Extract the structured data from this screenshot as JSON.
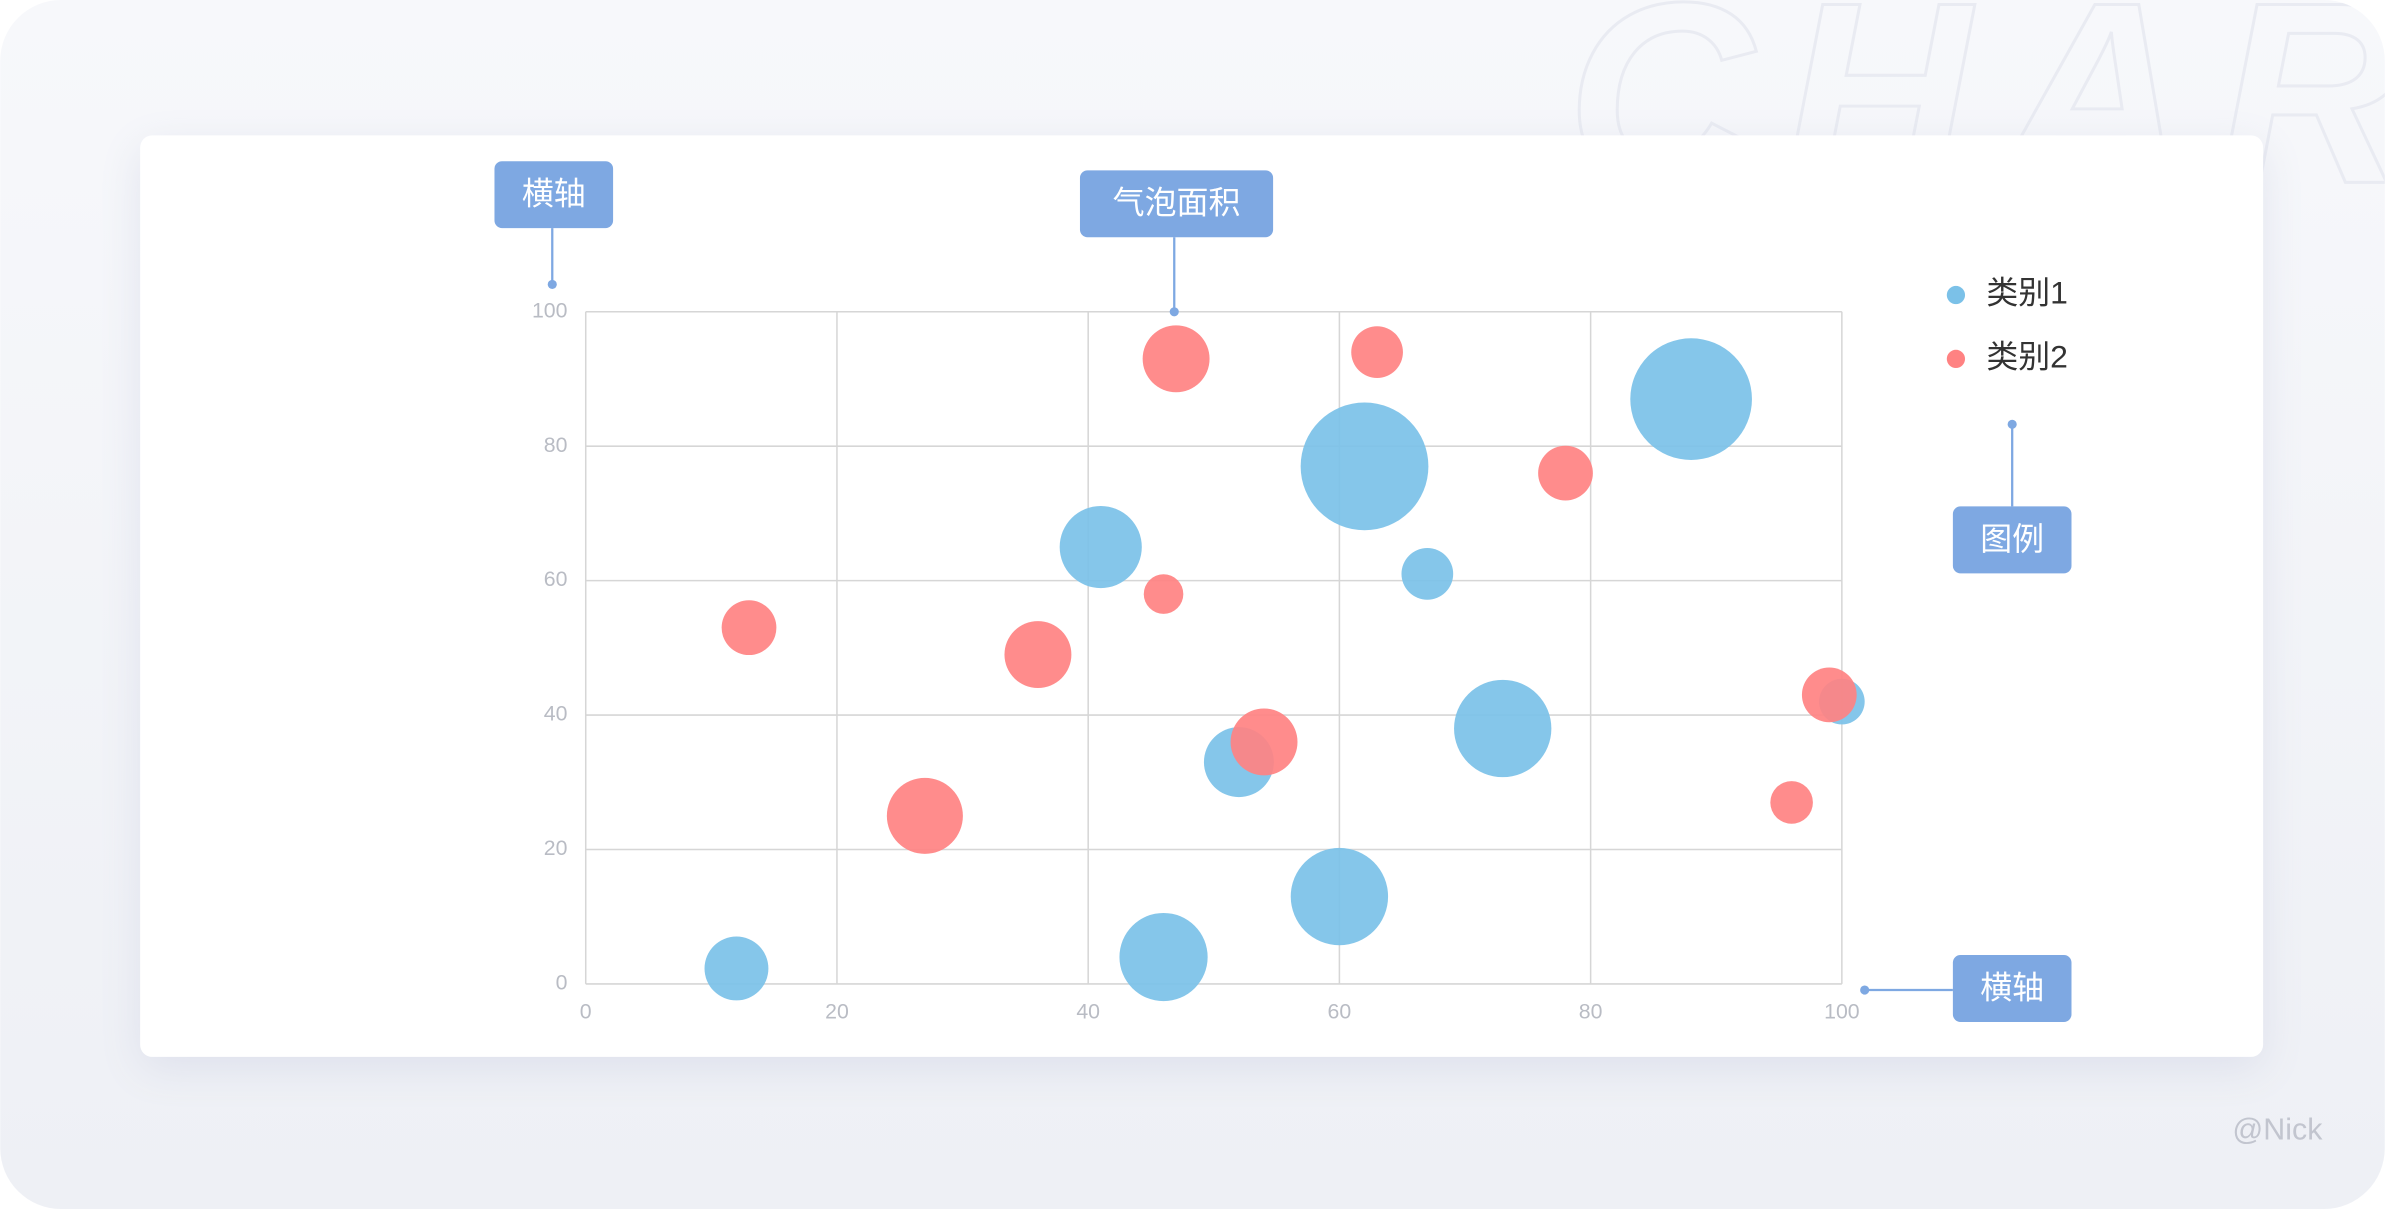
{
  "chart_data": {
    "type": "bubble",
    "background_text": "CHART",
    "watermark": "@Nick",
    "annotations": [
      "横轴",
      "气泡面积",
      "图例",
      "横轴"
    ],
    "xlim": [
      0,
      100
    ],
    "xticks": [
      0,
      20,
      40,
      60,
      80,
      100
    ],
    "ylim": [
      0,
      100
    ],
    "yticks": [
      0,
      20,
      40,
      60,
      80,
      100
    ],
    "grid": true,
    "legend": "right",
    "series": [
      {
        "name": "类别1",
        "color": "#7bc1e8",
        "x": [
          12,
          46,
          60,
          52,
          73,
          100,
          41,
          67,
          62,
          88
        ],
        "values": [
          2.3,
          4,
          13,
          33,
          38,
          42,
          65,
          61,
          77,
          87
        ],
        "sizes": [
          21,
          29,
          32,
          23,
          32,
          15,
          27,
          17,
          42,
          40
        ]
      },
      {
        "name": "类别2",
        "color": "#ff8282",
        "x": [
          13,
          27,
          36,
          46,
          47,
          63,
          54,
          78,
          99,
          96
        ],
        "values": [
          53,
          25,
          49,
          58,
          93,
          94,
          36,
          76,
          43,
          27
        ],
        "sizes": [
          18,
          25,
          22,
          13,
          22,
          17,
          22,
          18,
          18,
          14
        ]
      }
    ]
  }
}
